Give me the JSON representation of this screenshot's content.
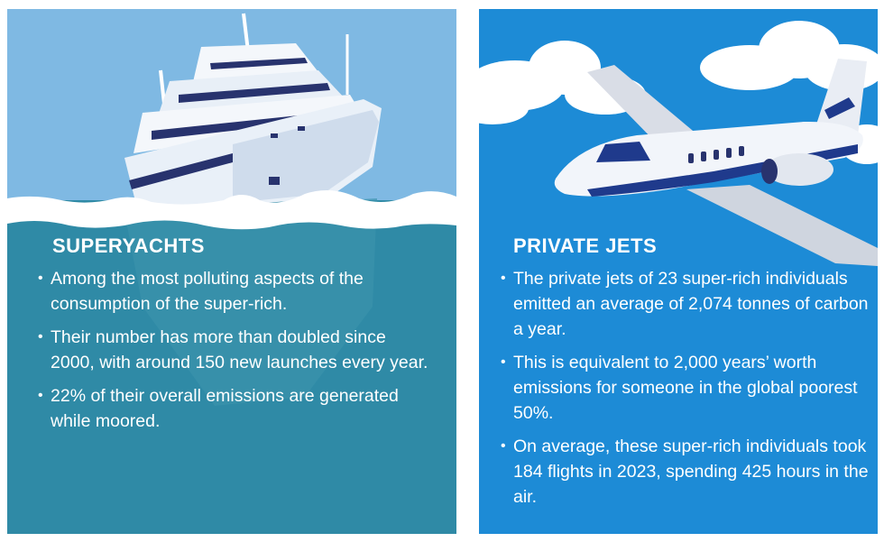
{
  "yachts": {
    "heading": "SUPERYACHTS",
    "bullets": [
      "Among the most polluting aspects of the consumption of the super-rich.",
      "Their number has more than doubled since 2000, with around 150 new launches every year.",
      "22% of their overall emissions are generated while moored."
    ]
  },
  "jets": {
    "heading": "PRIVATE JETS",
    "bullets": [
      "The private jets of 23 super-rich individuals emitted an average of 2,074 tonnes of carbon a year.",
      "This is equivalent to 2,000 years’ worth emissions for someone in the global poorest 50%.",
      "On average, these super-rich individuals took 184 flights in 2023, spending 425 hours in the air."
    ]
  },
  "colors": {
    "yacht_sky": "#7fb9e3",
    "yacht_sea": "#2f8aa6",
    "jet_sky": "#1d8bd6",
    "text": "#ffffff"
  }
}
